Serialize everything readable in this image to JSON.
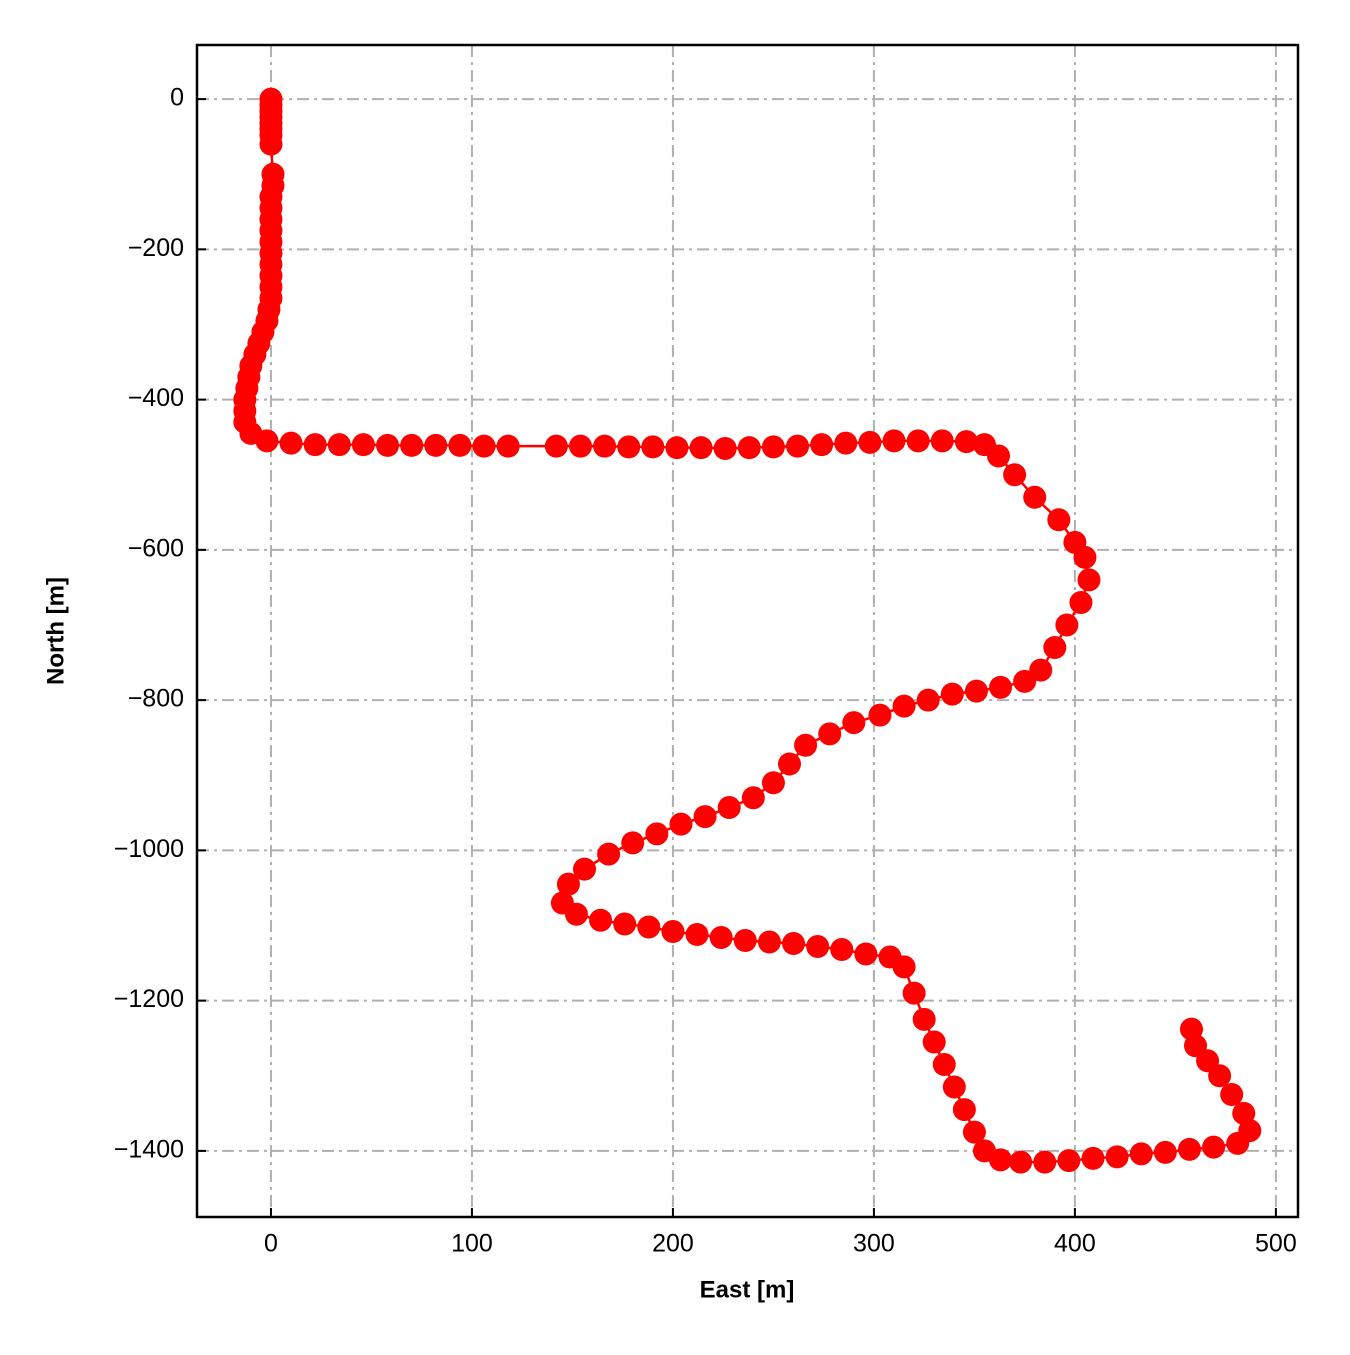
{
  "chart_data": {
    "type": "line",
    "x_label": "East [m]",
    "y_label": "North [m]",
    "xlim": [
      -36.8,
      511
    ],
    "ylim": [
      -1488,
      72
    ],
    "xticks": [
      0,
      100,
      200,
      300,
      400,
      500
    ],
    "yticks": [
      {
        "value": -1400,
        "label": "−1400"
      },
      {
        "value": -1200,
        "label": "−1200"
      },
      {
        "value": -1000,
        "label": "−1000"
      },
      {
        "value": -800,
        "label": "−800"
      },
      {
        "value": -600,
        "label": "−600"
      },
      {
        "value": -400,
        "label": "−400"
      },
      {
        "value": -200,
        "label": "−200"
      },
      0
    ],
    "grid": true,
    "x": [
      0,
      0,
      0,
      0,
      0,
      0,
      0,
      0,
      1,
      1,
      0,
      0,
      0,
      0,
      0,
      0,
      0,
      0,
      0,
      0,
      -1,
      -2,
      -4,
      -6,
      -8,
      -10,
      -11,
      -12,
      -13,
      -13,
      -13,
      -10,
      -2,
      10,
      22,
      34,
      46,
      58,
      70,
      82,
      94,
      106,
      118,
      142,
      154,
      166,
      178,
      190,
      202,
      214,
      226,
      238,
      250,
      262,
      274,
      286,
      298,
      310,
      322,
      334,
      346,
      355,
      362,
      370,
      380,
      392,
      400,
      405,
      407,
      403,
      396,
      390,
      383,
      375,
      363,
      351,
      339,
      327,
      315,
      303,
      290,
      278,
      266,
      258,
      250,
      240,
      228,
      216,
      204,
      192,
      180,
      168,
      156,
      148,
      145,
      152,
      164,
      176,
      188,
      200,
      212,
      224,
      236,
      248,
      260,
      272,
      284,
      296,
      308,
      315,
      320,
      325,
      330,
      335,
      340,
      345,
      350,
      355,
      363,
      373,
      385,
      397,
      409,
      421,
      433,
      445,
      457,
      469,
      481,
      487,
      484,
      478,
      472,
      466,
      460,
      458
    ],
    "series": [
      {
        "color": "#ff0000",
        "values": [
          0,
          -8,
          -16,
          -24,
          -32,
          -40,
          -48,
          -60,
          -100,
          -115,
          -130,
          -145,
          -160,
          -175,
          -190,
          -205,
          -220,
          -235,
          -250,
          -265,
          -280,
          -295,
          -310,
          -325,
          -340,
          -355,
          -370,
          -385,
          -400,
          -415,
          -430,
          -445,
          -455,
          -458,
          -460,
          -460,
          -460,
          -461,
          -461,
          -461,
          -461,
          -462,
          -462,
          -462,
          -462,
          -462,
          -463,
          -463,
          -464,
          -464,
          -465,
          -464,
          -463,
          -462,
          -460,
          -458,
          -457,
          -455,
          -455,
          -455,
          -456,
          -460,
          -475,
          -500,
          -530,
          -560,
          -590,
          -610,
          -640,
          -670,
          -700,
          -730,
          -760,
          -775,
          -783,
          -788,
          -792,
          -800,
          -808,
          -820,
          -830,
          -845,
          -860,
          -885,
          -910,
          -930,
          -943,
          -955,
          -965,
          -978,
          -990,
          -1005,
          -1025,
          -1045,
          -1070,
          -1085,
          -1093,
          -1098,
          -1102,
          -1108,
          -1112,
          -1116,
          -1120,
          -1122,
          -1124,
          -1128,
          -1132,
          -1138,
          -1142,
          -1155,
          -1190,
          -1225,
          -1255,
          -1285,
          -1315,
          -1345,
          -1375,
          -1400,
          -1412,
          -1415,
          -1415,
          -1413,
          -1410,
          -1408,
          -1404,
          -1402,
          -1398,
          -1395,
          -1390,
          -1373,
          -1350,
          -1325,
          -1300,
          -1280,
          -1260,
          -1238
        ]
      }
    ]
  }
}
